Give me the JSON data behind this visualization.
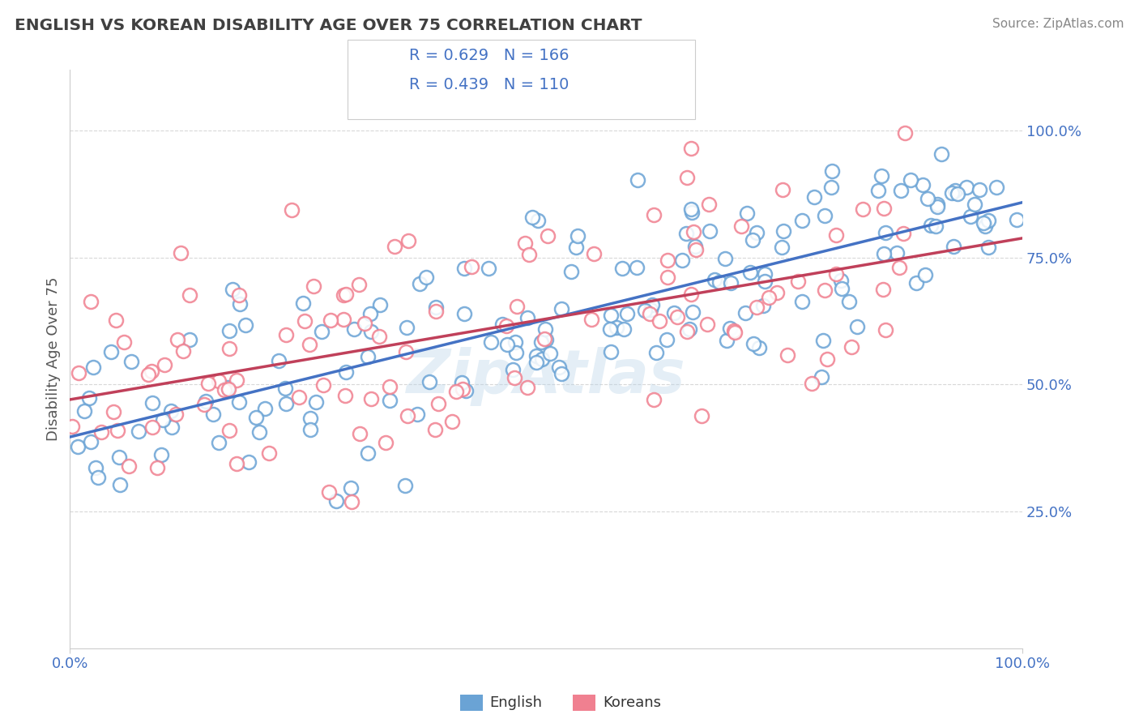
{
  "title": "ENGLISH VS KOREAN DISABILITY AGE OVER 75 CORRELATION CHART",
  "source": "Source: ZipAtlas.com",
  "ylabel": "Disability Age Over 75",
  "xlim": [
    0.0,
    1.0
  ],
  "ylim": [
    -0.02,
    1.12
  ],
  "x_tick_labels": [
    "0.0%",
    "100.0%"
  ],
  "x_tick_vals": [
    0.0,
    1.0
  ],
  "y_tick_labels_right": [
    "25.0%",
    "50.0%",
    "75.0%",
    "100.0%"
  ],
  "y_tick_vals_right": [
    0.25,
    0.5,
    0.75,
    1.0
  ],
  "english_R": 0.629,
  "english_N": 166,
  "korean_R": 0.439,
  "korean_N": 110,
  "english_scatter_color": "#6aa3d5",
  "korean_scatter_color": "#f08090",
  "english_line_color": "#4472c4",
  "korean_line_color": "#c0405a",
  "title_color": "#404040",
  "source_color": "#888888",
  "legend_text_color": "#4472c4",
  "axis_label_color": "#4472c4",
  "axis_color": "#cccccc",
  "grid_color": "#d8d8d8",
  "watermark_color": "#b8d4e8",
  "background_color": "#ffffff",
  "eng_line_y0": 0.4,
  "eng_line_y1": 0.87,
  "kor_line_y0": 0.5,
  "kor_line_y1": 0.74
}
